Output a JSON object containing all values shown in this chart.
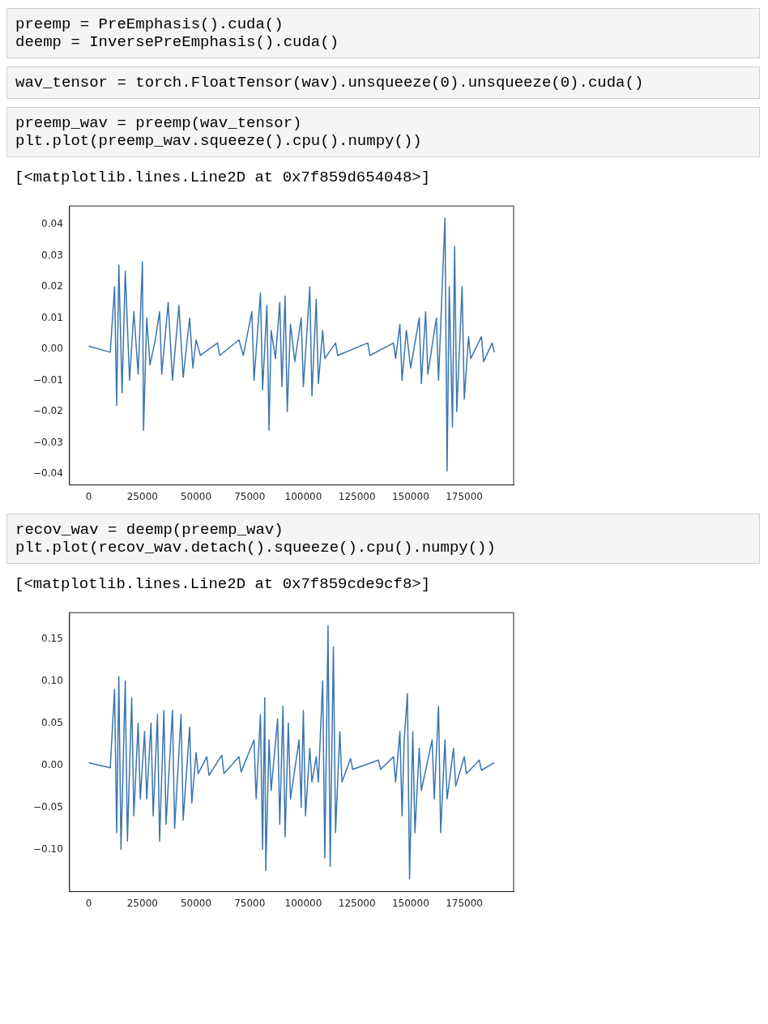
{
  "chart_data": [
    {
      "type": "line",
      "annotations": [
        "preemp = PreEmphasis().cuda()\ndeemp = InversePreEmphasis().cuda()",
        "wav_tensor = torch.FloatTensor(wav).unsqueeze(0).unsqueeze(0).cuda()",
        "preemp_wav = preemp(wav_tensor)\nplt.plot(preemp_wav.squeeze().cpu().numpy())",
        "[<matplotlib.lines.Line2D at 0x7f859d654048>]"
      ],
      "xlim": [
        -9000,
        198000
      ],
      "ylim": [
        -0.0435,
        0.0459
      ],
      "xticks": [
        0,
        25000,
        50000,
        75000,
        100000,
        125000,
        150000,
        175000
      ],
      "yticks": [
        0.04,
        0.03,
        0.02,
        0.01,
        {
          "value": 0,
          "label": "0.00"
        },
        {
          "value": -0.01,
          "label": "−0.01"
        },
        {
          "value": -0.02,
          "label": "−0.02"
        },
        {
          "value": -0.03,
          "label": "−0.03"
        },
        {
          "value": -0.04,
          "label": "−0.04"
        }
      ],
      "series": [
        {
          "color": "#3b75af",
          "x": [
            0,
            10000,
            12000,
            13000,
            14000,
            15500,
            17000,
            19000,
            21000,
            23000,
            25000,
            25500,
            27000,
            28500,
            31000,
            33000,
            34000,
            37000,
            39000,
            42000,
            44000,
            47000,
            48500,
            50000,
            52000,
            60000,
            61000,
            70000,
            72000,
            76000,
            77000,
            80000,
            81000,
            83000,
            84000,
            85000,
            87000,
            89000,
            90000,
            91500,
            92500,
            94000,
            96000,
            99000,
            100000,
            103000,
            104000,
            106000,
            107000,
            109000,
            110000,
            115000,
            116000,
            130000,
            131000,
            142000,
            143000,
            145000,
            146000,
            148000,
            150000,
            154000,
            155000,
            157000,
            158000,
            162000,
            163000,
            166000,
            167000,
            168000,
            169500,
            170500,
            171500,
            174000,
            175000,
            177000,
            178000,
            183000,
            184000,
            188000,
            189000
          ],
          "values": [
            0.001,
            -0.001,
            0.02,
            -0.018,
            0.027,
            -0.014,
            0.025,
            -0.01,
            0.012,
            -0.008,
            0.028,
            -0.026,
            0.01,
            -0.005,
            0.003,
            0.012,
            -0.008,
            0.015,
            -0.01,
            0.014,
            -0.009,
            0.01,
            -0.006,
            0.003,
            -0.002,
            0.002,
            -0.002,
            0.003,
            -0.002,
            0.012,
            -0.01,
            0.018,
            -0.013,
            0.014,
            -0.026,
            0.006,
            -0.003,
            0.015,
            -0.012,
            0.017,
            -0.02,
            0.008,
            -0.004,
            0.01,
            -0.012,
            0.02,
            -0.015,
            0.016,
            -0.011,
            0.006,
            -0.003,
            0.002,
            -0.002,
            0.002,
            -0.002,
            0.002,
            -0.003,
            0.008,
            -0.01,
            0.006,
            -0.006,
            0.01,
            -0.011,
            0.012,
            -0.008,
            0.01,
            -0.01,
            0.042,
            -0.039,
            0.02,
            -0.025,
            0.033,
            -0.02,
            0.02,
            -0.016,
            0.004,
            -0.003,
            0.004,
            -0.004,
            0.002,
            -0.001
          ]
        }
      ]
    },
    {
      "type": "line",
      "annotations": [
        "recov_wav = deemp(preemp_wav)\nplt.plot(recov_wav.detach().squeeze().cpu().numpy())",
        "[<matplotlib.lines.Line2D at 0x7f859cde9cf8>]"
      ],
      "xlim": [
        -9000,
        198000
      ],
      "ylim": [
        -0.15,
        0.181
      ],
      "xticks": [
        0,
        25000,
        50000,
        75000,
        100000,
        125000,
        150000,
        175000
      ],
      "yticks": [
        0.15,
        {
          "value": 0.1,
          "label": "0.10"
        },
        0.05,
        {
          "value": 0,
          "label": "0.00"
        },
        {
          "value": -0.05,
          "label": "−0.05"
        },
        {
          "value": -0.1,
          "label": "−0.10"
        }
      ],
      "series": [
        {
          "color": "#3b75af",
          "x": [
            0,
            10000,
            12000,
            13000,
            14000,
            15000,
            17000,
            18000,
            20000,
            21000,
            23000,
            24000,
            26000,
            27000,
            29000,
            30000,
            32000,
            33000,
            35000,
            36000,
            39000,
            40000,
            43000,
            44000,
            47000,
            48000,
            50000,
            51000,
            55000,
            56000,
            62000,
            63000,
            70000,
            71000,
            77000,
            78000,
            80000,
            81000,
            82000,
            82500,
            84000,
            85000,
            88000,
            89000,
            90500,
            91500,
            93000,
            94000,
            98000,
            99000,
            100000,
            101000,
            103000,
            104000,
            106000,
            107000,
            109000,
            110000,
            111500,
            112500,
            114000,
            115000,
            117000,
            118000,
            122000,
            123000,
            135000,
            136000,
            142000,
            143000,
            145000,
            146000,
            147000,
            148500,
            149500,
            151000,
            152000,
            154000,
            155000,
            160000,
            161000,
            163000,
            164000,
            166000,
            167000,
            170000,
            171000,
            175000,
            176000,
            182000,
            183000,
            189000
          ],
          "values": [
            0.003,
            -0.003,
            0.09,
            -0.08,
            0.105,
            -0.1,
            0.1,
            -0.09,
            0.08,
            -0.06,
            0.05,
            -0.04,
            0.04,
            -0.04,
            0.05,
            -0.06,
            0.06,
            -0.09,
            0.065,
            -0.07,
            0.065,
            -0.075,
            0.06,
            -0.065,
            0.045,
            -0.045,
            0.015,
            -0.01,
            0.01,
            -0.012,
            0.012,
            -0.01,
            0.01,
            -0.008,
            0.03,
            -0.04,
            0.06,
            -0.1,
            0.08,
            -0.125,
            0.03,
            -0.03,
            0.055,
            -0.07,
            0.07,
            -0.085,
            0.05,
            -0.04,
            0.03,
            -0.05,
            0.065,
            -0.06,
            0.02,
            -0.02,
            0.01,
            -0.02,
            0.1,
            -0.11,
            0.165,
            -0.12,
            0.14,
            -0.08,
            0.04,
            -0.02,
            0.008,
            -0.005,
            0.006,
            -0.005,
            0.01,
            -0.02,
            0.04,
            -0.06,
            0.03,
            0.085,
            -0.135,
            0.04,
            -0.08,
            0.02,
            -0.03,
            0.03,
            -0.04,
            0.07,
            -0.08,
            0.03,
            -0.04,
            0.02,
            -0.025,
            0.01,
            -0.01,
            0.006,
            -0.006,
            0.003
          ]
        }
      ]
    }
  ]
}
